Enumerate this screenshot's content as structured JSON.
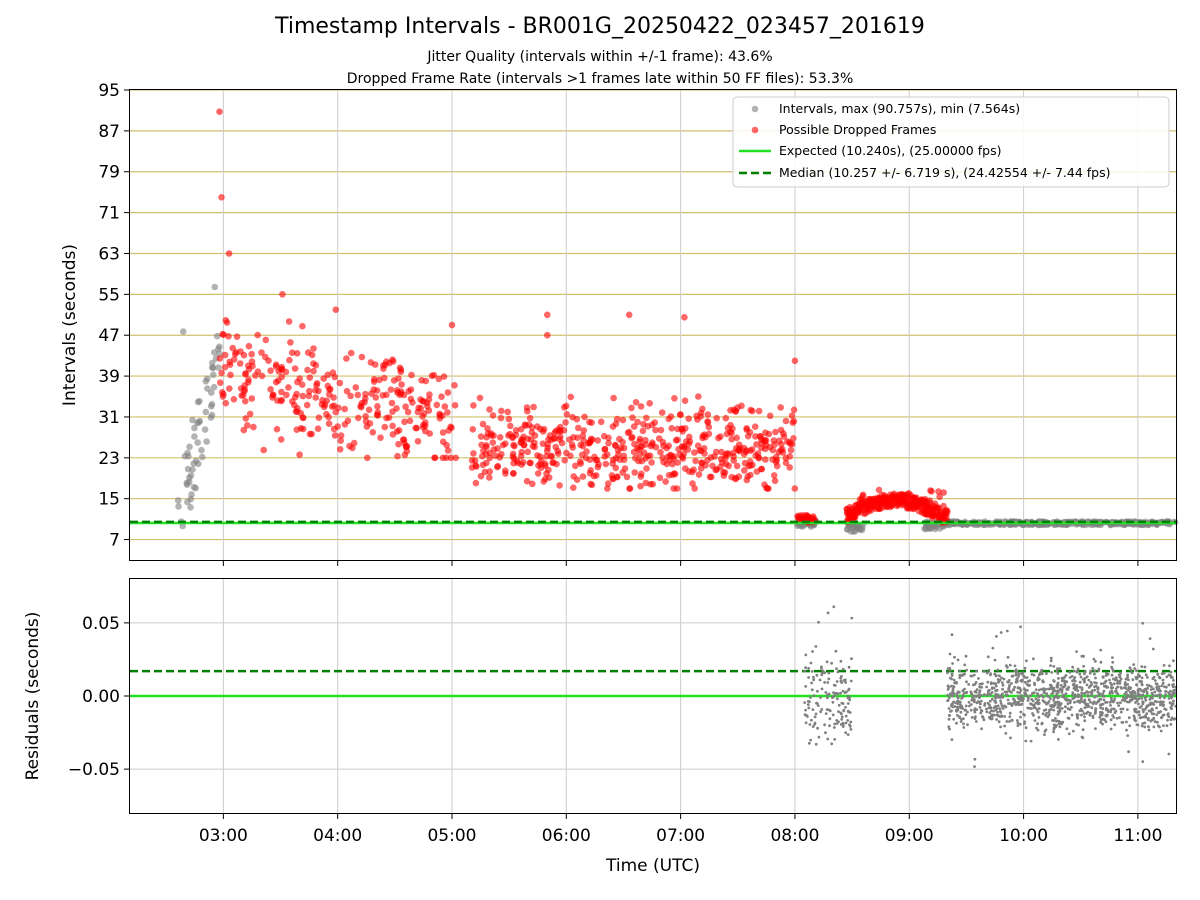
{
  "figure": {
    "title": "Timestamp Intervals - BR001G_20250422_023457_201619",
    "subtitle_1": "Jitter Quality (intervals within +/-1 frame): 43.6%",
    "subtitle_2": "Dropped Frame Rate (intervals >1 frames late within 50 FF files): 53.3%"
  },
  "colors": {
    "intervals": "#808080",
    "dropped": "#ff0000",
    "expected": "#22e022",
    "median": "#008000",
    "hgrid": "#d2bf6e",
    "vgrid": "#cccccc"
  },
  "chart_data": [
    {
      "type": "scatter",
      "ylabel": "Intervals (seconds)",
      "xlabel": "",
      "ylim": [
        3,
        95
      ],
      "xlim": [
        "02:11",
        "11:20"
      ],
      "yticks": [
        "7",
        "15",
        "23",
        "31",
        "39",
        "47",
        "55",
        "63",
        "71",
        "79",
        "87",
        "95"
      ],
      "grid": "horizontal and vertical",
      "legend_position": "top-right",
      "legend": {
        "intervals": "Intervals, max (90.757s), min (7.564s)",
        "dropped": "Possible Dropped Frames",
        "expected": "Expected (10.240s), (25.00000 fps)",
        "median": "Median (10.257 +/- 6.719 s), (24.42554 +/- 7.44 fps)"
      },
      "expected_value": 10.24,
      "median_value": 10.257,
      "series": [
        {
          "name": "Intervals, max (90.757s), min (7.564s)",
          "segments": [
            {
              "x_range": [
                "02:36",
                "02:58"
              ],
              "y_range": [
                7.6,
                67
              ],
              "approx_points": 60
            },
            {
              "x_range": [
                "08:01",
                "08:11"
              ],
              "y_range": [
                9.5,
                11
              ],
              "approx_points": 40
            },
            {
              "x_range": [
                "08:27",
                "08:36"
              ],
              "y_range": [
                8.5,
                10.5
              ],
              "approx_points": 25
            },
            {
              "x_range": [
                "09:08",
                "09:20"
              ],
              "y_range": [
                9,
                10.5
              ],
              "approx_points": 30
            },
            {
              "x_range": [
                "09:20",
                "11:20"
              ],
              "y_range": [
                9.8,
                10.6
              ],
              "approx_points": 400,
              "note": "dense band"
            }
          ]
        },
        {
          "name": "Possible Dropped Frames",
          "segments": [
            {
              "x_range": [
                "02:58",
                "05:02"
              ],
              "y_range": [
                23,
                55
              ],
              "approx_points": 300
            },
            {
              "x_range": [
                "05:10",
                "08:00"
              ],
              "y_range": [
                17,
                35
              ],
              "approx_points": 520
            },
            {
              "x_range": [
                "08:01",
                "08:11"
              ],
              "y_range": [
                10.3,
                11.8
              ],
              "approx_points": 30
            },
            {
              "x_range": [
                "08:27",
                "09:20"
              ],
              "y_range": [
                10,
                17
              ],
              "approx_points": 300
            }
          ],
          "outliers": [
            {
              "x": "02:58",
              "y": 90.757
            },
            {
              "x": "02:59",
              "y": 74
            },
            {
              "x": "03:03",
              "y": 63
            },
            {
              "x": "03:31",
              "y": 55
            },
            {
              "x": "03:59",
              "y": 52
            },
            {
              "x": "05:00",
              "y": 49
            },
            {
              "x": "05:50",
              "y": 51
            },
            {
              "x": "05:50",
              "y": 47
            },
            {
              "x": "06:33",
              "y": 51
            },
            {
              "x": "07:02",
              "y": 50.5
            },
            {
              "x": "08:00",
              "y": 42
            }
          ]
        }
      ]
    },
    {
      "type": "scatter",
      "ylabel": "Residuals (seconds)",
      "xlabel": "Time (UTC)",
      "ylim": [
        -0.08,
        0.08
      ],
      "yticks": [
        "0.05",
        "0.00",
        "−0.05"
      ],
      "xticks": [
        "03:00",
        "04:00",
        "05:00",
        "06:00",
        "07:00",
        "08:00",
        "09:00",
        "10:00",
        "11:00"
      ],
      "grid": "horizontal and vertical",
      "zero_line": 0.0,
      "median_line": 0.017,
      "series": [
        {
          "name": "",
          "segments": [
            {
              "x_range": [
                "08:05",
                "08:30"
              ],
              "y_range": [
                -0.045,
                0.068
              ],
              "approx_points": 150
            },
            {
              "x_range": [
                "09:20",
                "11:20"
              ],
              "y_range": [
                -0.05,
                0.05
              ],
              "approx_points": 1200
            }
          ]
        }
      ]
    }
  ]
}
